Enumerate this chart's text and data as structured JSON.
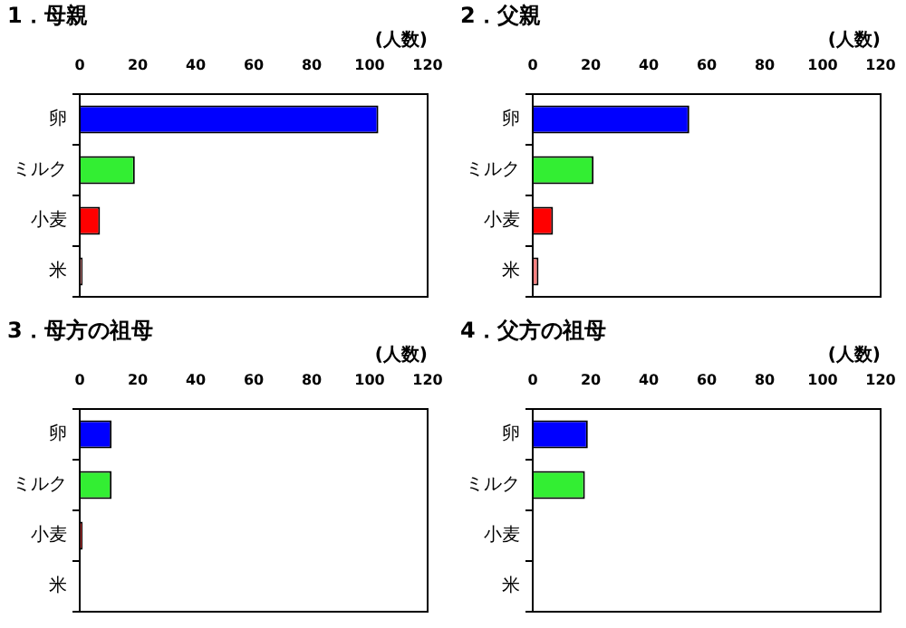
{
  "chart_data": [
    {
      "type": "bar",
      "orientation": "horizontal",
      "title": "1．母親",
      "xlabel": "(人数)",
      "categories": [
        "卵",
        "ミルク",
        "小麦",
        "米"
      ],
      "values": [
        103,
        19,
        7,
        1
      ],
      "colors": [
        "#0000ff",
        "#33ee33",
        "#ff0000",
        "#ff8080"
      ],
      "xlim": [
        0,
        120
      ],
      "xticks": [
        0,
        20,
        40,
        60,
        80,
        100,
        120
      ],
      "grid": false,
      "legend": false
    },
    {
      "type": "bar",
      "orientation": "horizontal",
      "title": "2．父親",
      "xlabel": "(人数)",
      "categories": [
        "卵",
        "ミルク",
        "小麦",
        "米"
      ],
      "values": [
        54,
        21,
        7,
        2
      ],
      "colors": [
        "#0000ff",
        "#33ee33",
        "#ff0000",
        "#ff8080"
      ],
      "xlim": [
        0,
        120
      ],
      "xticks": [
        0,
        20,
        40,
        60,
        80,
        100,
        120
      ],
      "grid": false,
      "legend": false
    },
    {
      "type": "bar",
      "orientation": "horizontal",
      "title": "3．母方の祖母",
      "xlabel": "(人数)",
      "categories": [
        "卵",
        "ミルク",
        "小麦",
        "米"
      ],
      "values": [
        11,
        11,
        1,
        0
      ],
      "colors": [
        "#0000ff",
        "#33ee33",
        "#ff0000",
        "#ff8080"
      ],
      "xlim": [
        0,
        120
      ],
      "xticks": [
        0,
        20,
        40,
        60,
        80,
        100,
        120
      ],
      "grid": false,
      "legend": false
    },
    {
      "type": "bar",
      "orientation": "horizontal",
      "title": "4．父方の祖母",
      "xlabel": "(人数)",
      "categories": [
        "卵",
        "ミルク",
        "小麦",
        "米"
      ],
      "values": [
        19,
        18,
        0,
        0
      ],
      "colors": [
        "#0000ff",
        "#33ee33",
        "#ff0000",
        "#ff8080"
      ],
      "xlim": [
        0,
        120
      ],
      "xticks": [
        0,
        20,
        40,
        60,
        80,
        100,
        120
      ],
      "grid": false,
      "legend": false
    }
  ]
}
